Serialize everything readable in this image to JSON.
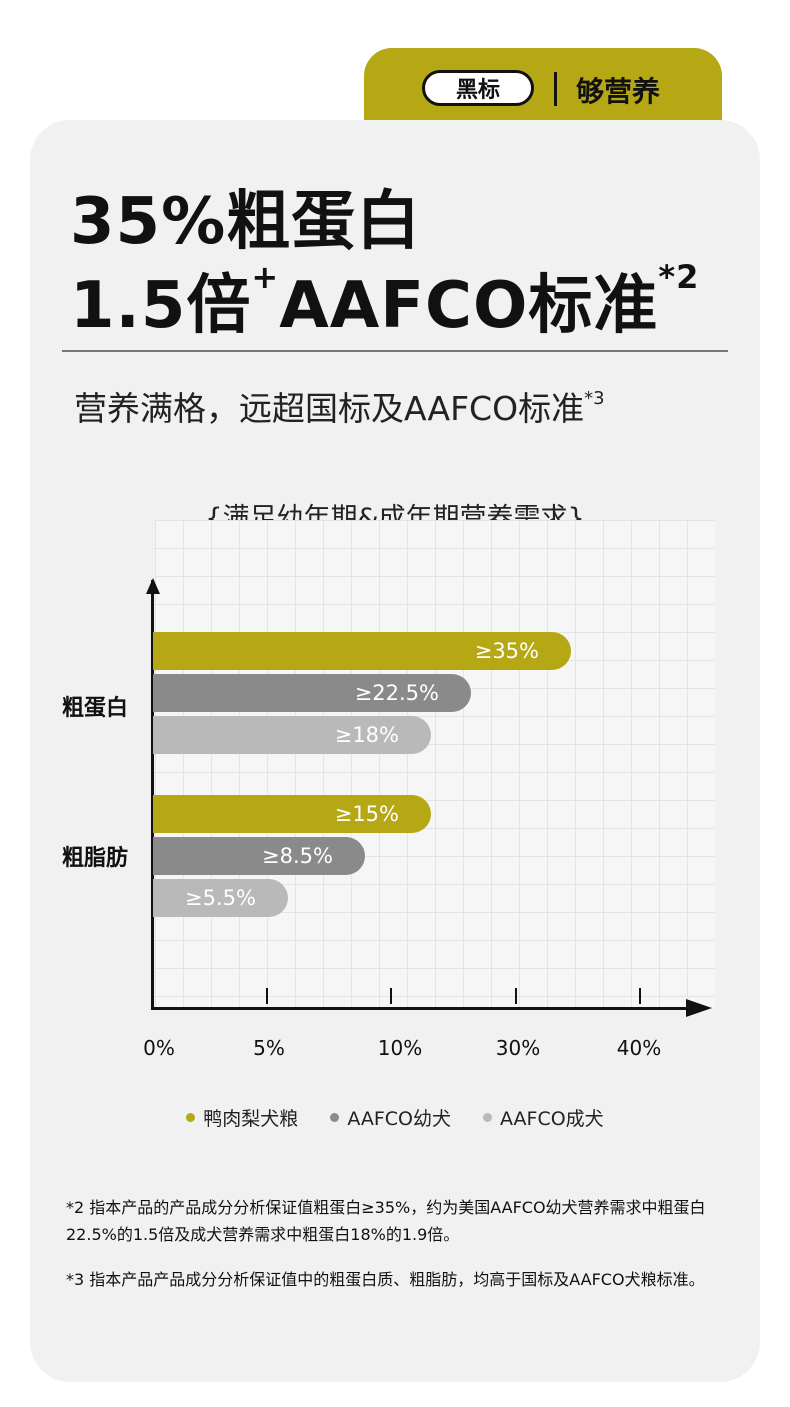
{
  "tab": {
    "pill_label": "黑标",
    "label": "够营养"
  },
  "headline": {
    "line1": "35%粗蛋白",
    "line2_a": "1.5倍",
    "line2_plus": "+",
    "line2_b": "AAFCO标准",
    "line2_note": "*2"
  },
  "subtitle": {
    "text": "营养满格，远超国标及AAFCO标准",
    "note": "*3"
  },
  "colors": {
    "accent": "#b6a714",
    "dark_gray": "#8a8a8a",
    "light_gray": "#b9b9b9"
  },
  "chart_data": {
    "type": "bar",
    "orientation": "horizontal",
    "title": "{满足幼年期&成年期营养需求}",
    "categories": [
      "粗蛋白",
      "粗脂肪"
    ],
    "x_ticks": [
      "0%",
      "5%",
      "10%",
      "30%",
      "40%"
    ],
    "series": [
      {
        "name": "鸭肉梨犬粮",
        "values": [
          35,
          15
        ],
        "labels": [
          "≥35%",
          "≥15%"
        ]
      },
      {
        "name": "AAFCO幼犬",
        "values": [
          22.5,
          8.5
        ],
        "labels": [
          "≥22.5%",
          "≥8.5%"
        ]
      },
      {
        "name": "AAFCO成犬",
        "values": [
          18,
          5.5
        ],
        "labels": [
          "≥18%",
          "≥5.5%"
        ]
      }
    ],
    "grid": true,
    "legend_position": "bottom"
  },
  "footnotes": {
    "n2": "*2 指本产品的产品成分分析保证值粗蛋白≥35%，约为美国AAFCO幼犬营养需求中粗蛋白22.5%的1.5倍及成犬营养需求中粗蛋白18%的1.9倍。",
    "n3": "*3 指本产品产品成分分析保证值中的粗蛋白质、粗脂肪，均高于国标及AAFCO犬粮标准。"
  }
}
